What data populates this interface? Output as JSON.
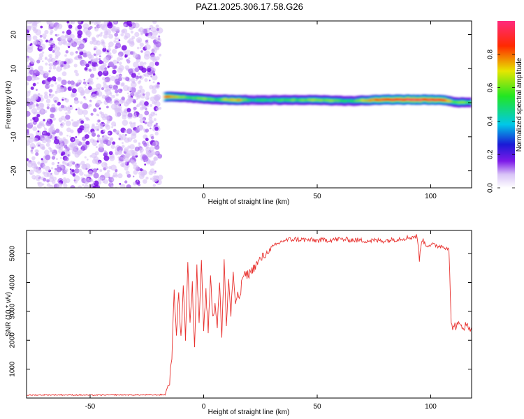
{
  "figure_title": "PAZ1.2025.306.17.58.G26",
  "chart_data": [
    {
      "type": "heatmap",
      "title": "PAZ1.2025.306.17.58.G26",
      "xlabel": "Height of straight line (km)",
      "ylabel": "Frequency (Hz)",
      "xlim": [
        -78,
        118
      ],
      "ylim": [
        -25,
        24
      ],
      "xticks": [
        -50,
        0,
        50,
        100
      ],
      "xtick_labels": [
        "-50",
        "0",
        "50",
        "100"
      ],
      "yticks": [
        -20,
        -10,
        0,
        10,
        20
      ],
      "ytick_labels": [
        "-20",
        "-10",
        "0",
        "10",
        "20"
      ],
      "noise_region_x": [
        -78,
        -19
      ],
      "noise_level": 0.15,
      "signal_track": [
        {
          "x": -17,
          "freq": 1.8,
          "amp": 0.8
        },
        {
          "x": -8,
          "freq": 1.6,
          "amp": 0.55
        },
        {
          "x": 0,
          "freq": 1.2,
          "amp": 0.6
        },
        {
          "x": 5,
          "freq": 0.9,
          "amp": 0.55
        },
        {
          "x": 15,
          "freq": 0.8,
          "amp": 0.75
        },
        {
          "x": 20,
          "freq": 0.8,
          "amp": 0.45
        },
        {
          "x": 30,
          "freq": 0.8,
          "amp": 0.5
        },
        {
          "x": 50,
          "freq": 0.8,
          "amp": 0.6
        },
        {
          "x": 65,
          "freq": 0.5,
          "amp": 0.5
        },
        {
          "x": 80,
          "freq": 0.9,
          "amp": 0.9
        },
        {
          "x": 95,
          "freq": 0.9,
          "amp": 0.95
        },
        {
          "x": 105,
          "freq": 0.8,
          "amp": 0.9
        },
        {
          "x": 112,
          "freq": 0.1,
          "amp": 0.55
        },
        {
          "x": 118,
          "freq": 0.0,
          "amp": 0.5
        }
      ],
      "colorbar": {
        "label": "Normalized spectral amplitude",
        "range": [
          0,
          1
        ],
        "ticks": [
          0.0,
          0.2,
          0.4,
          0.6,
          0.8
        ],
        "tick_labels": [
          "0.0",
          "0.2",
          "0.4",
          "0.6",
          "0.8"
        ]
      }
    },
    {
      "type": "line",
      "xlabel": "Height of straight line (km)",
      "ylabel": "SNR (10 * v/v)",
      "xlim": [
        -78,
        118
      ],
      "ylim": [
        0,
        5800
      ],
      "xticks": [
        -50,
        0,
        50,
        100
      ],
      "xtick_labels": [
        "-50",
        "0",
        "50",
        "100"
      ],
      "yticks": [
        1000,
        2000,
        3000,
        4000,
        5000
      ],
      "ytick_labels": [
        "1000",
        "2000",
        "3000",
        "4000",
        "5000"
      ],
      "color": "#e8312e",
      "series": [
        {
          "name": "SNR",
          "x": [
            -78,
            -70,
            -60,
            -50,
            -40,
            -30,
            -20,
            -17,
            -15,
            -14,
            -13,
            -12,
            -11,
            -10,
            -9,
            -8,
            -7,
            -6,
            -5,
            -4,
            -3,
            -2,
            -1,
            0,
            1,
            2,
            3,
            4,
            5,
            6,
            7,
            8,
            9,
            10,
            11,
            12,
            13,
            14,
            15,
            16,
            17,
            20,
            25,
            30,
            35,
            40,
            50,
            60,
            70,
            80,
            90,
            94,
            95,
            96,
            98,
            100,
            105,
            108,
            109,
            110,
            112,
            115,
            118
          ],
          "values": [
            100,
            110,
            110,
            100,
            110,
            110,
            110,
            120,
            600,
            1500,
            3600,
            2300,
            3600,
            2000,
            4000,
            2100,
            4700,
            2500,
            3900,
            1800,
            4500,
            2700,
            4900,
            2400,
            3700,
            2300,
            4400,
            2700,
            3300,
            2500,
            4000,
            2000,
            4900,
            2500,
            4100,
            2900,
            4400,
            3100,
            3700,
            3400,
            4200,
            4300,
            4800,
            5200,
            5450,
            5500,
            5450,
            5500,
            5450,
            5450,
            5550,
            5600,
            4800,
            5500,
            5300,
            5300,
            5250,
            5200,
            2500,
            2500,
            2500,
            2500,
            2450
          ]
        }
      ]
    }
  ]
}
